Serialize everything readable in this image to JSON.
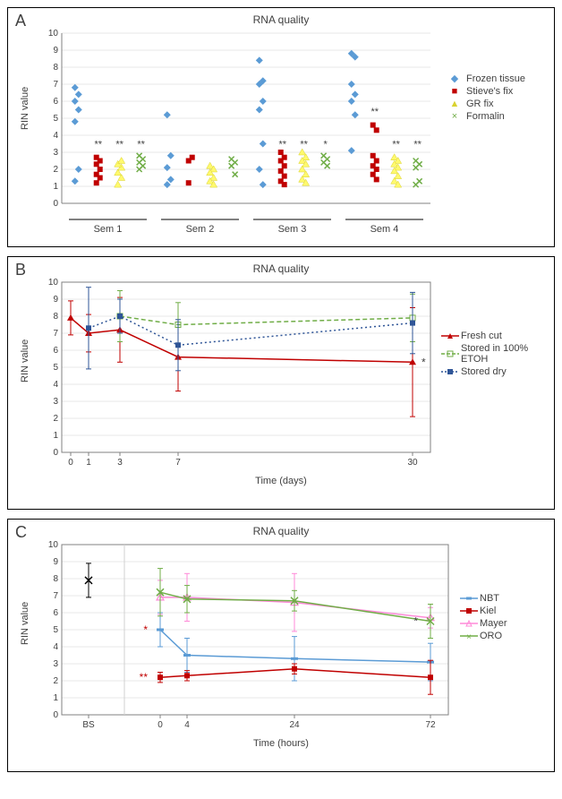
{
  "panelA": {
    "label": "A",
    "title": "RNA quality",
    "type": "scatter-jitter",
    "ylabel": "RIN value",
    "ylim": [
      0,
      10
    ],
    "yticks": [
      0,
      1,
      2,
      3,
      4,
      5,
      6,
      7,
      8,
      9,
      10
    ],
    "categories": [
      "Sem 1",
      "Sem 2",
      "Sem 3",
      "Sem 4"
    ],
    "series": [
      {
        "name": "Frozen tissue",
        "color": "#5b9bd5",
        "glyph": "◆"
      },
      {
        "name": "Stieve's fix",
        "color": "#c00000",
        "glyph": "■"
      },
      {
        "name": "GR fix",
        "color": "#fff96d",
        "stroke": "#d9d230",
        "glyph": "▲"
      },
      {
        "name": "Formalin",
        "color": "#70ad47",
        "glyph": "×"
      }
    ],
    "annotations": [
      "**",
      "**",
      "**",
      "**",
      "**",
      "*",
      "**",
      "**",
      "**"
    ],
    "background_color": "#ffffff",
    "grid_color": "#d0d0d0"
  },
  "panelB": {
    "label": "B",
    "title": "RNA quality",
    "type": "line-errorbar",
    "ylabel": "RIN value",
    "xlabel": "Time (days)",
    "ylim": [
      0,
      10
    ],
    "yticks": [
      0,
      1,
      2,
      3,
      4,
      5,
      6,
      7,
      8,
      9,
      10
    ],
    "xticks": [
      0,
      1,
      3,
      7,
      30
    ],
    "series": [
      {
        "name": "Fresh cut",
        "color": "#c00000",
        "style": "solid",
        "marker": "▲",
        "points": [
          [
            0,
            7.9,
            1.0
          ],
          [
            1,
            7.0,
            1.1
          ],
          [
            3,
            7.2,
            1.9
          ],
          [
            7,
            5.6,
            2.0
          ],
          [
            30,
            5.3,
            3.2
          ]
        ],
        "annot": [
          [
            30,
            "*"
          ]
        ]
      },
      {
        "name": "Stored in 100% ETOH",
        "color": "#70ad47",
        "style": "dash",
        "marker": "□",
        "points": [
          [
            3,
            8.0,
            1.5
          ],
          [
            7,
            7.5,
            1.3
          ],
          [
            30,
            7.9,
            1.4
          ]
        ]
      },
      {
        "name": "Stored dry",
        "color": "#2f5597",
        "style": "dot",
        "marker": "■",
        "points": [
          [
            1,
            7.3,
            2.4
          ],
          [
            3,
            8.0,
            1.0
          ],
          [
            7,
            6.3,
            1.5
          ],
          [
            30,
            7.6,
            1.8
          ]
        ]
      }
    ],
    "background_color": "#ffffff",
    "grid_color": "#d0d0d0"
  },
  "panelC": {
    "label": "C",
    "title": "RNA quality",
    "type": "line-errorbar",
    "ylabel": "RIN value",
    "xlabel": "Time (hours)",
    "ylim": [
      0,
      10
    ],
    "yticks": [
      0,
      1,
      2,
      3,
      4,
      5,
      6,
      7,
      8,
      9,
      10
    ],
    "xticks_labels": [
      "BS",
      "0",
      "4",
      "24",
      "72"
    ],
    "series": [
      {
        "name": "NBT",
        "color": "#5b9bd5",
        "style": "solid",
        "marker": "─",
        "points": [
          [
            1,
            5.0,
            1.0
          ],
          [
            2,
            3.5,
            1.0
          ],
          [
            3,
            3.3,
            1.3
          ],
          [
            4,
            3.1,
            1.1
          ]
        ],
        "annot": [
          [
            1,
            "*"
          ]
        ],
        "annot_color": "#c00000"
      },
      {
        "name": "Kiel",
        "color": "#c00000",
        "style": "solid",
        "marker": "■",
        "points": [
          [
            1,
            2.2,
            0.3
          ],
          [
            2,
            2.3,
            0.3
          ],
          [
            3,
            2.7,
            0.3
          ],
          [
            4,
            2.2,
            1.0
          ]
        ],
        "annot": [
          [
            1,
            "**"
          ]
        ],
        "annot_color": "#c00000"
      },
      {
        "name": "Mayer",
        "color": "#ff8ad8",
        "style": "solid",
        "marker": "▲",
        "points": [
          [
            1,
            6.9,
            1.0
          ],
          [
            2,
            6.9,
            1.4
          ],
          [
            3,
            6.6,
            1.7
          ],
          [
            4,
            5.7,
            0.6
          ]
        ]
      },
      {
        "name": "ORO",
        "color": "#70ad47",
        "style": "solid",
        "marker": "×",
        "points": [
          [
            1,
            7.2,
            1.4
          ],
          [
            2,
            6.8,
            0.8
          ],
          [
            3,
            6.7,
            0.6
          ],
          [
            4,
            5.5,
            1.0
          ]
        ],
        "annot": [
          [
            4,
            "*"
          ]
        ],
        "annot_color": "#404040"
      }
    ],
    "baseline": {
      "label": "BS",
      "color": "#000000",
      "marker": "×",
      "point": [
        0,
        7.9,
        1.0
      ]
    },
    "background_color": "#ffffff",
    "grid_color": "#d0d0d0"
  }
}
